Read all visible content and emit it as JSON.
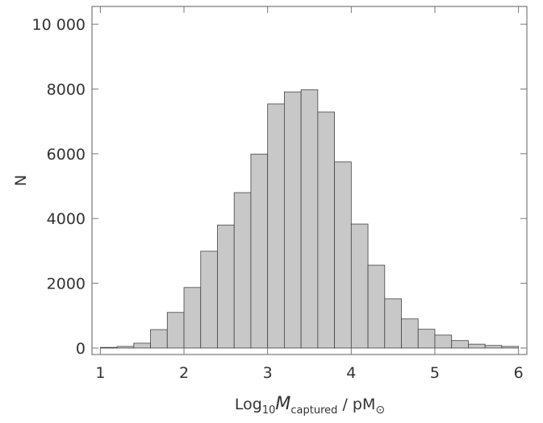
{
  "chart_data": {
    "type": "histogram",
    "bins": [
      1.0,
      1.2,
      1.4,
      1.6,
      1.8,
      2.0,
      2.2,
      2.4,
      2.6,
      2.8,
      3.0,
      3.2,
      3.4,
      3.6,
      3.8,
      4.0,
      4.2,
      4.4,
      4.6,
      4.8,
      5.0,
      5.2,
      5.4,
      5.6,
      5.8,
      6.0
    ],
    "counts": [
      20,
      50,
      150,
      570,
      1100,
      1870,
      2990,
      3800,
      4800,
      5990,
      7540,
      7910,
      7980,
      7290,
      5750,
      3830,
      2560,
      1520,
      900,
      580,
      400,
      230,
      120,
      80,
      50
    ],
    "color": "#c8c8c8",
    "xlim": [
      0.9,
      6.1
    ],
    "xticks": [
      1,
      2,
      3,
      4,
      5,
      6
    ],
    "ylim": [
      -200,
      10550
    ],
    "yticks": [
      0,
      2000,
      4000,
      6000,
      8000,
      {
        "value": 10000,
        "label": "10 000"
      }
    ],
    "y_label": "N",
    "x_label": {
      "log": "Log",
      "base": "10",
      "m": "M",
      "sub": "captured",
      "rest": " / pM",
      "sun": "⊙"
    }
  }
}
